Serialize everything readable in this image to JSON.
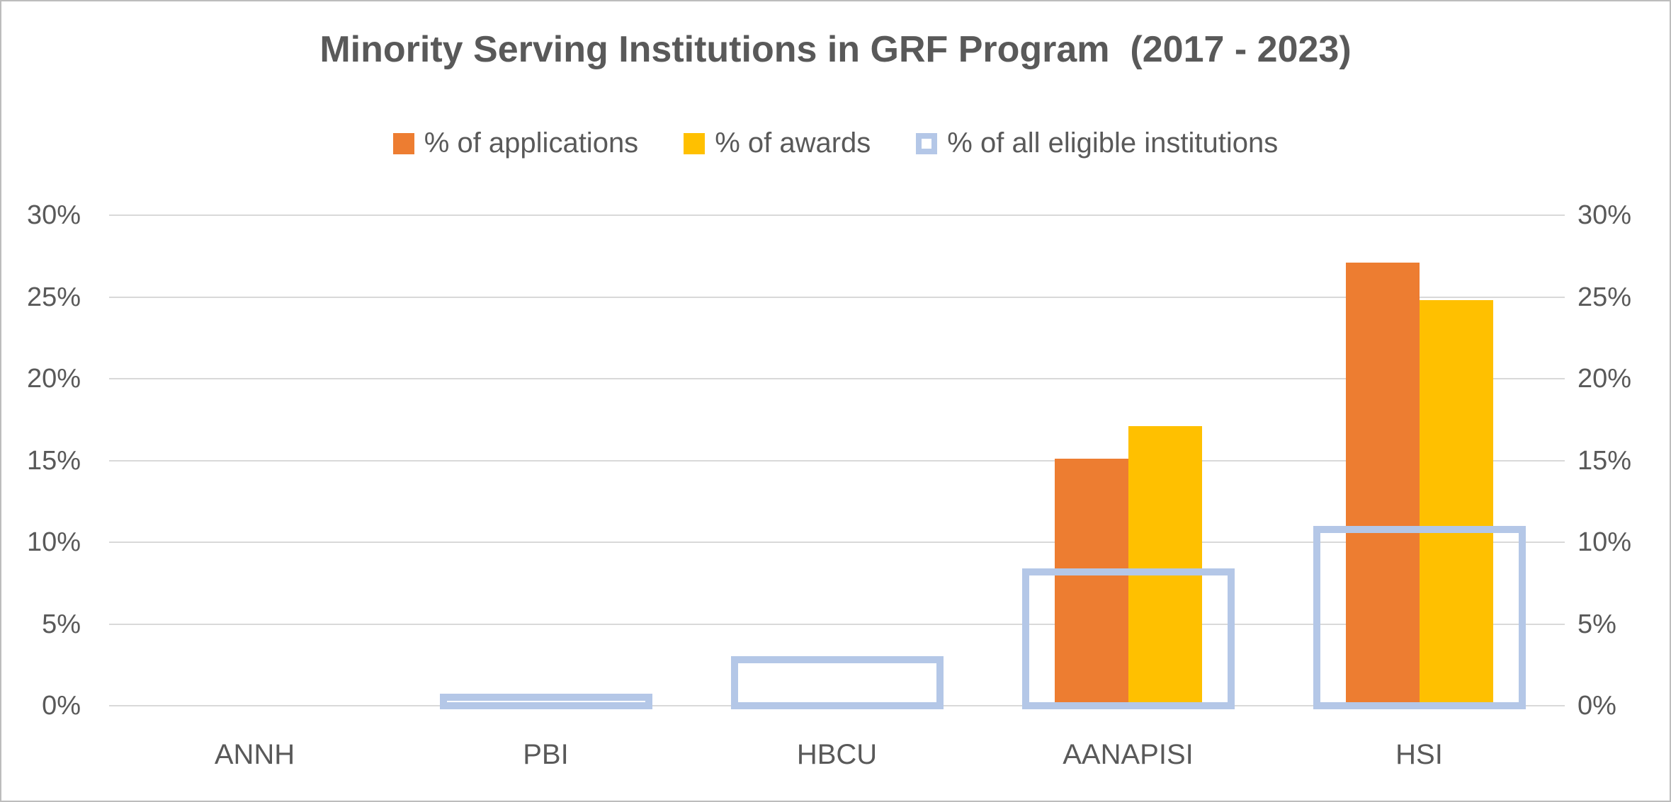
{
  "chart_data": {
    "type": "bar",
    "title": "Minority Serving Institutions in GRF Program  (2017 - 2023)",
    "categories": [
      "ANNH",
      "PBI",
      "HBCU",
      "AANAPISI",
      "HSI"
    ],
    "series": [
      {
        "name": "% of applications",
        "key": "applications",
        "color": "#ED7D31",
        "style": "filled",
        "values": [
          0,
          0,
          0,
          15.1,
          27.1
        ]
      },
      {
        "name": "% of awards",
        "key": "awards",
        "color": "#FFC000",
        "style": "filled",
        "values": [
          0,
          0,
          0,
          17.1,
          24.8
        ]
      },
      {
        "name": "% of all eligible institutions",
        "key": "eligible",
        "color": "#B4C7E7",
        "style": "outlined",
        "values": [
          0,
          0.5,
          2.8,
          8.2,
          10.8
        ]
      }
    ],
    "y_axis": {
      "min": 0,
      "max": 30,
      "step": 5,
      "unit": "%",
      "tick_labels": [
        "0%",
        "5%",
        "10%",
        "15%",
        "20%",
        "25%",
        "30%"
      ],
      "label_sides": [
        "left",
        "right"
      ]
    },
    "x_axis": {
      "tick_labels": [
        "ANNH",
        "PBI",
        "HBCU",
        "AANAPISI",
        "HSI"
      ]
    },
    "grid": true,
    "legend_position": "top",
    "colors": {
      "text": "#595959",
      "gridline": "#D9D9D9",
      "background": "#FFFFFF",
      "frame_border": "#BDBDBD"
    }
  }
}
